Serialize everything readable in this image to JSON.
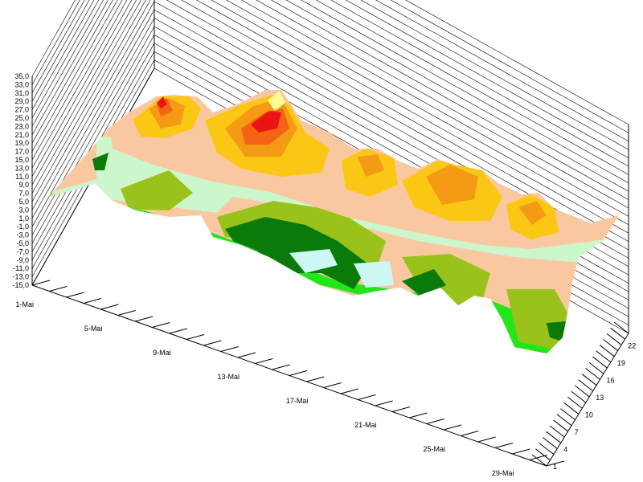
{
  "chart_data": {
    "type": "surface",
    "title": "",
    "z_axis": {
      "label": "",
      "ticks": [
        "35,0",
        "33,0",
        "31,0",
        "29,0",
        "27,0",
        "25,0",
        "23,0",
        "21,0",
        "19,0",
        "17,0",
        "15,0",
        "13,0",
        "11,0",
        "9,0",
        "7,0",
        "5,0",
        "3,0",
        "1,0",
        "-1,0",
        "-3,0",
        "-5,0",
        "-7,0",
        "-9,0",
        "-11,0",
        "-13,0",
        "-15,0"
      ],
      "range": [
        -15,
        35
      ]
    },
    "x_axis": {
      "label": "",
      "ticks": [
        "1-Mai",
        "5-Mai",
        "9-Mai",
        "13-Mai",
        "17-Mai",
        "21-Mai",
        "25-Mai",
        "29-Mai"
      ]
    },
    "y_axis": {
      "label": "",
      "ticks": [
        "1",
        "4",
        "7",
        "10",
        "13",
        "16",
        "19",
        "22"
      ]
    },
    "grid": true,
    "legend": "none",
    "color_bands": [
      {
        "range": [
          -15,
          -5
        ],
        "color": "#ccf7f2"
      },
      {
        "range": [
          -5,
          -1
        ],
        "color": "#0a7a0a"
      },
      {
        "range": [
          -1,
          3
        ],
        "color": "#99c21a"
      },
      {
        "range": [
          3,
          7
        ],
        "color": "#22e61a"
      },
      {
        "range": [
          7,
          11
        ],
        "color": "#ccf7cc"
      },
      {
        "range": [
          11,
          15
        ],
        "color": "#fac8a0"
      },
      {
        "range": [
          15,
          19
        ],
        "color": "#fac814"
      },
      {
        "range": [
          19,
          23
        ],
        "color": "#f59a14"
      },
      {
        "range": [
          23,
          27
        ],
        "color": "#f56414"
      },
      {
        "range": [
          27,
          31
        ],
        "color": "#eb1414"
      },
      {
        "range": [
          31,
          35
        ],
        "color": "#fafa9a"
      }
    ],
    "surface_peaks": [
      {
        "day": "5-Mai",
        "hour": 15,
        "value": 29
      },
      {
        "day": "9-Mai",
        "hour": 15,
        "value": 33
      },
      {
        "day": "14-Mai",
        "hour": 15,
        "value": 23
      },
      {
        "day": "19-Mai",
        "hour": 15,
        "value": 21
      },
      {
        "day": "21-Mai",
        "hour": 15,
        "value": 21
      },
      {
        "day": "25-Mai",
        "hour": 15,
        "value": 19
      }
    ]
  }
}
